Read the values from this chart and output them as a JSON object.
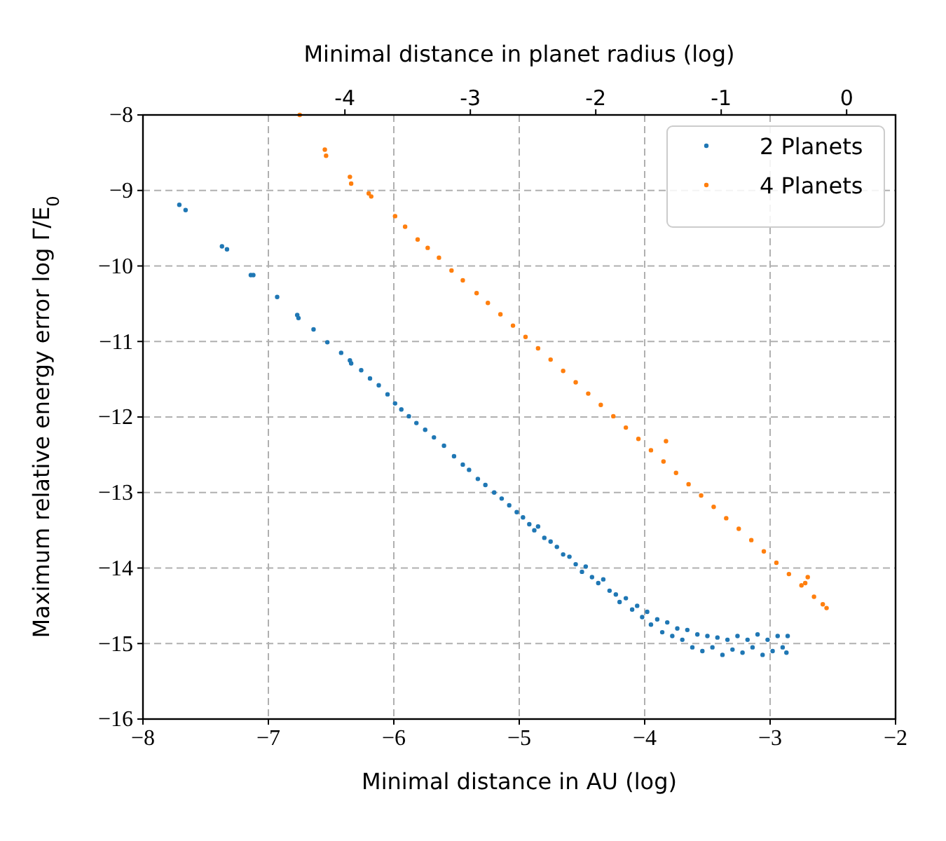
{
  "chart_data": {
    "type": "scatter",
    "xlabel": "Minimal distance in AU (log)",
    "ylabel": "Maximum relative energy error log Γ/E$_{0}$",
    "x2label": "Minimal distance in planet radius (log)",
    "xlim": [
      -8,
      -2
    ],
    "xticks": [
      -8,
      -7,
      -6,
      -5,
      -4,
      -3,
      -2
    ],
    "ylim": [
      -16,
      -8
    ],
    "yticks": [
      -16,
      -15,
      -14,
      -13,
      -12,
      -11,
      -10,
      -9,
      -8
    ],
    "x2lim": [
      -5.61,
      0.39
    ],
    "x2ticks": [
      -4,
      -3,
      -2,
      -1,
      0
    ],
    "grid": true,
    "legend": "top right",
    "marker": "circle",
    "series": [
      {
        "name": "2 Planets",
        "color": "#1f77b4",
        "x": [
          -7.71,
          -7.66,
          -7.37,
          -7.33,
          -7.14,
          -7.12,
          -6.93,
          -6.77,
          -6.76,
          -6.64,
          -6.53,
          -6.42,
          -6.35,
          -6.34,
          -6.26,
          -6.19,
          -6.12,
          -6.05,
          -5.99,
          -5.94,
          -5.88,
          -5.82,
          -5.75,
          -5.68,
          -5.6,
          -5.52,
          -5.45,
          -5.4,
          -5.33,
          -5.27,
          -5.2,
          -5.14,
          -5.08,
          -5.02,
          -4.97,
          -4.92,
          -4.88,
          -4.85,
          -4.8,
          -4.75,
          -4.7,
          -4.65,
          -4.6,
          -4.55,
          -4.5,
          -4.47,
          -4.42,
          -4.37,
          -4.33,
          -4.28,
          -4.23,
          -4.2,
          -4.15,
          -4.1,
          -4.06,
          -4.02,
          -3.98,
          -3.95,
          -3.9,
          -3.86,
          -3.82,
          -3.78,
          -3.74,
          -3.7,
          -3.66,
          -3.62,
          -3.58,
          -3.54,
          -3.5,
          -3.46,
          -3.42,
          -3.38,
          -3.34,
          -3.3,
          -3.26,
          -3.22,
          -3.18,
          -3.14,
          -3.1,
          -3.06,
          -3.02,
          -2.98,
          -2.94,
          -2.9,
          -2.87,
          -2.86
        ],
        "values": [
          -9.19,
          -9.26,
          -9.74,
          -9.78,
          -10.12,
          -10.12,
          -10.41,
          -10.65,
          -10.69,
          -10.84,
          -11.01,
          -11.15,
          -11.25,
          -11.29,
          -11.38,
          -11.49,
          -11.58,
          -11.7,
          -11.82,
          -11.9,
          -11.99,
          -12.08,
          -12.17,
          -12.27,
          -12.38,
          -12.52,
          -12.63,
          -12.7,
          -12.82,
          -12.9,
          -13.0,
          -13.08,
          -13.17,
          -13.26,
          -13.33,
          -13.42,
          -13.5,
          -13.45,
          -13.6,
          -13.65,
          -13.72,
          -13.82,
          -13.85,
          -13.95,
          -14.05,
          -13.98,
          -14.12,
          -14.2,
          -14.15,
          -14.3,
          -14.35,
          -14.45,
          -14.4,
          -14.55,
          -14.5,
          -14.65,
          -14.58,
          -14.75,
          -14.68,
          -14.85,
          -14.72,
          -14.9,
          -14.8,
          -14.95,
          -14.82,
          -15.05,
          -14.88,
          -15.1,
          -14.9,
          -15.05,
          -14.92,
          -15.15,
          -14.95,
          -15.08,
          -14.9,
          -15.12,
          -14.95,
          -15.05,
          -14.88,
          -15.15,
          -14.95,
          -15.1,
          -14.9,
          -15.05,
          -15.12,
          -14.9
        ]
      },
      {
        "name": "4 Planets",
        "color": "#ff7f0e",
        "x": [
          -6.75,
          -6.55,
          -6.54,
          -6.35,
          -6.34,
          -6.2,
          -6.18,
          -5.99,
          -5.91,
          -5.81,
          -5.73,
          -5.64,
          -5.54,
          -5.45,
          -5.34,
          -5.25,
          -5.15,
          -5.05,
          -4.95,
          -4.85,
          -4.75,
          -4.65,
          -4.55,
          -4.45,
          -4.35,
          -4.25,
          -4.15,
          -4.05,
          -3.95,
          -3.85,
          -3.83,
          -3.75,
          -3.65,
          -3.55,
          -3.45,
          -3.35,
          -3.25,
          -3.15,
          -3.05,
          -2.95,
          -2.85,
          -2.75,
          -2.72,
          -2.7,
          -2.65,
          -2.58,
          -2.55
        ],
        "values": [
          -8.0,
          -8.46,
          -8.54,
          -8.82,
          -8.91,
          -9.04,
          -9.08,
          -9.34,
          -9.48,
          -9.65,
          -9.76,
          -9.89,
          -10.06,
          -10.19,
          -10.36,
          -10.49,
          -10.64,
          -10.79,
          -10.94,
          -11.09,
          -11.24,
          -11.39,
          -11.54,
          -11.69,
          -11.84,
          -11.99,
          -12.14,
          -12.29,
          -12.44,
          -12.59,
          -12.32,
          -12.74,
          -12.89,
          -13.04,
          -13.19,
          -13.34,
          -13.48,
          -13.63,
          -13.78,
          -13.93,
          -14.08,
          -14.23,
          -14.2,
          -14.12,
          -14.38,
          -14.48,
          -14.53
        ]
      }
    ]
  }
}
